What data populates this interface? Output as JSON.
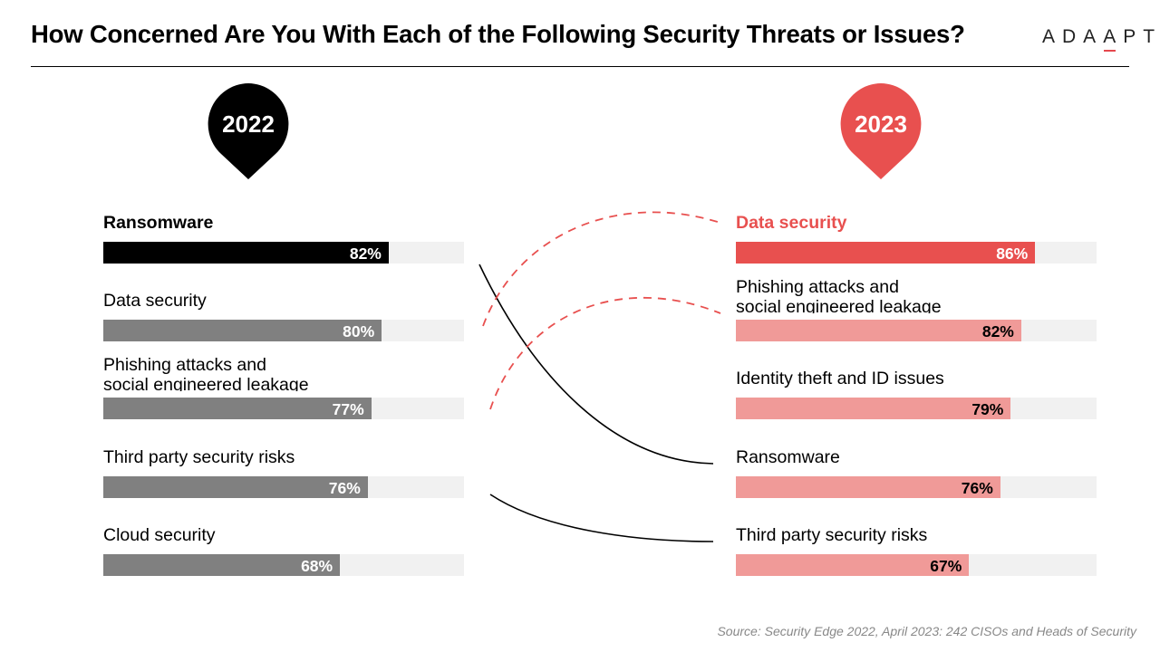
{
  "title": "How Concerned Are You With Each of the Following Security Threats or Issues?",
  "logo": {
    "pre": "ADA",
    "accent": "A",
    "mid": "",
    "post": "PT",
    "accent_color": "#e5484d"
  },
  "colors": {
    "black": "#000000",
    "gray": "#808080",
    "red": "#e8504f",
    "pink": "#f09a98",
    "track": "#f1f1f1",
    "red_text": "#e8504f"
  },
  "source": "Source: Security Edge 2022, April 2023: 242 CISOs and Heads of Security",
  "chart_data": [
    {
      "type": "bar",
      "orientation": "horizontal",
      "title": "2022",
      "categories": [
        "Ransomware",
        "Data security",
        "Phishing attacks and\nsocial engineered leakage",
        "Third party security risks",
        "Cloud security"
      ],
      "values": [
        82,
        80,
        77,
        76,
        68
      ],
      "value_labels": [
        "82%",
        "80%",
        "77%",
        "76%",
        "68%"
      ],
      "xlim": [
        0,
        100
      ],
      "bar_colors": [
        "#000000",
        "#808080",
        "#808080",
        "#808080",
        "#808080"
      ],
      "label_colors": [
        "#000000",
        "#000000",
        "#000000",
        "#000000",
        "#000000"
      ],
      "value_text_colors": [
        "#ffffff",
        "#ffffff",
        "#ffffff",
        "#ffffff",
        "#ffffff"
      ],
      "bold_labels": [
        true,
        false,
        false,
        false,
        false
      ]
    },
    {
      "type": "bar",
      "orientation": "horizontal",
      "title": "2023",
      "categories": [
        "Data security",
        "Phishing attacks and\nsocial engineered leakage",
        "Identity theft and ID issues",
        "Ransomware",
        "Third party security risks"
      ],
      "values": [
        86,
        82,
        79,
        76,
        67
      ],
      "value_labels": [
        "86%",
        "82%",
        "79%",
        "76%",
        "67%"
      ],
      "xlim": [
        0,
        100
      ],
      "bar_colors": [
        "#e8504f",
        "#f09a98",
        "#f09a98",
        "#f09a98",
        "#f09a98"
      ],
      "label_colors": [
        "#e8504f",
        "#000000",
        "#000000",
        "#000000",
        "#000000"
      ],
      "value_text_colors": [
        "#ffffff",
        "#000000",
        "#000000",
        "#000000",
        "#000000"
      ],
      "bold_labels": [
        true,
        false,
        false,
        false,
        false
      ]
    }
  ]
}
